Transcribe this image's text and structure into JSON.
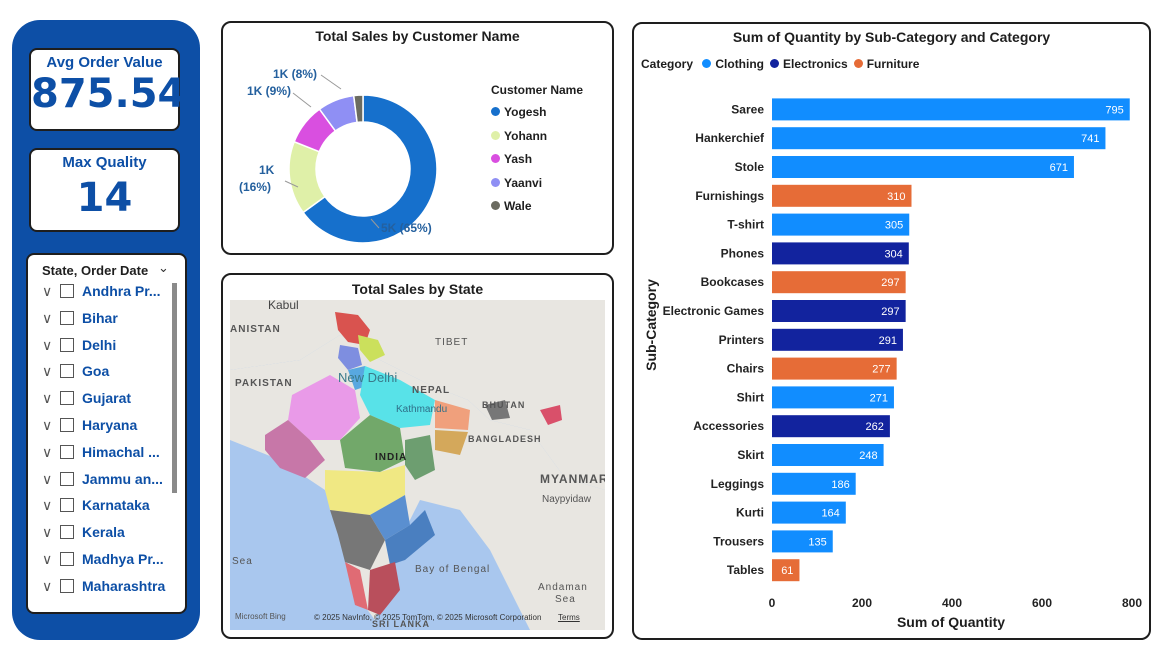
{
  "kpis": {
    "avg_order_value": {
      "label": "Avg Order Value",
      "value": "875.54"
    },
    "max_quality": {
      "label": "Max Quality",
      "value": "14"
    }
  },
  "slicer": {
    "title": "State, Order Date",
    "items": [
      "Andhra Pr...",
      "Bihar",
      "Delhi",
      "Goa",
      "Gujarat",
      "Haryana",
      "Himachal ...",
      "Jammu an...",
      "Karnataka",
      "Kerala",
      "Madhya Pr...",
      "Maharashtra"
    ]
  },
  "donut": {
    "title": "Total Sales by Customer Name",
    "legend_title": "Customer Name",
    "labels": [
      "5K (65%)",
      "1K",
      "(16%)",
      "1K (9%)",
      "1K (8%)"
    ]
  },
  "map": {
    "title": "Total Sales by State",
    "place_labels": [
      "Kabul",
      "ANISTAN",
      "PAKISTAN",
      "TIBET",
      "New Delhi",
      "NEPAL",
      "Kathmandu",
      "BHUTAN",
      "INDIA",
      "BANGLADESH",
      "MYANMAR",
      "Naypyidaw",
      "Bay of Bengal",
      "Andaman",
      "Sea",
      "Sea",
      "SRI LANKA"
    ],
    "attribution": "© 2025 NavInfo, © 2025 TomTom, © 2025 Microsoft Corporation",
    "terms": "Terms",
    "bing": "Microsoft Bing"
  },
  "bar_chart": {
    "title": "Sum of Quantity by Sub-Category and Category",
    "legend_title": "Category"
  },
  "colors": {
    "brand": "#0d4fa6",
    "clothing": "#118dff",
    "electronics": "#12239e",
    "furniture": "#e66c37"
  },
  "chart_data": [
    {
      "type": "pie",
      "title": "Total Sales by Customer Name",
      "legend_title": "Customer Name",
      "categories": [
        "Yogesh",
        "Yohann",
        "Yash",
        "Yaanvi",
        "Wale"
      ],
      "values": [
        65,
        16,
        9,
        8,
        2
      ],
      "colors": [
        "#1670cc",
        "#dff0a8",
        "#d94fe0",
        "#8f8ff4",
        "#6b6b60"
      ]
    },
    {
      "type": "bar",
      "orientation": "horizontal",
      "title": "Sum of Quantity by Sub-Category and Category",
      "xlabel": "Sum of Quantity",
      "ylabel": "Sub-Category",
      "xlim": [
        0,
        800
      ],
      "xticks": [
        0,
        200,
        400,
        600,
        800
      ],
      "legend_title": "Category",
      "legend": [
        "Clothing",
        "Electronics",
        "Furniture"
      ],
      "categories": [
        "Saree",
        "Hankerchief",
        "Stole",
        "Furnishings",
        "T-shirt",
        "Phones",
        "Bookcases",
        "Electronic Games",
        "Printers",
        "Chairs",
        "Shirt",
        "Accessories",
        "Skirt",
        "Leggings",
        "Kurti",
        "Trousers",
        "Tables"
      ],
      "values": [
        795,
        741,
        671,
        310,
        305,
        304,
        297,
        297,
        291,
        277,
        271,
        262,
        248,
        186,
        164,
        135,
        61
      ],
      "groups": [
        "Clothing",
        "Clothing",
        "Clothing",
        "Furniture",
        "Clothing",
        "Electronics",
        "Furniture",
        "Electronics",
        "Electronics",
        "Furniture",
        "Clothing",
        "Electronics",
        "Clothing",
        "Clothing",
        "Clothing",
        "Clothing",
        "Furniture"
      ]
    }
  ]
}
